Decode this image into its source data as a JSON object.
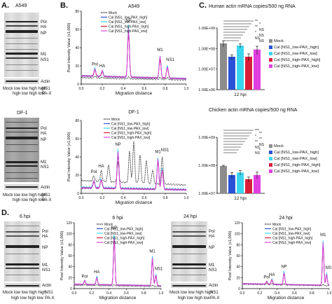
{
  "panels": {
    "A": {
      "letter": "A.",
      "title": "A549"
    },
    "B": {
      "letter": "B.",
      "title": "A549"
    },
    "C": {
      "letter": "C.",
      "title_top": "Human actin mRNA copies/500 ng RNA",
      "title_bottom": "Chicken actin mRNA copies/500 ng RNA",
      "xlabel": "12 hpi"
    },
    "D": {
      "letter": "D.",
      "left_title": "6 hpi",
      "right_title": "24 hpi"
    },
    "gel_df1_title": "DF-1",
    "trace_df1_title": "DF-1"
  },
  "gel_labels": {
    "pol": "Pol",
    "ha": "HA",
    "np": "NP",
    "m1": "M1",
    "ns1": "NS1",
    "actin": "Actin",
    "row1": "Mock  low  low  high high",
    "row2": "high  low  high  low",
    "ns1_row": "NS1",
    "pax_row": "PA-X",
    "df1_pol": "Pol",
    "df1_ha": "HA",
    "df1_np": "NP",
    "df1_m1": "M1",
    "df1_ns1": "NS1",
    "df1_actin": "Actin",
    "df1_row1": "Mock  low  low  high high",
    "df1_row2": "high  low  high  low",
    "d_pol": "Pol",
    "d_ha": "HA",
    "d_np": "NP",
    "d_m1": "M1",
    "d_ns1": "NS1",
    "d_actin": "Actin",
    "d_row1": "Mock low  low  high  high",
    "d_row2": "high  low  high  low",
    "d2_pol": "Pol",
    "d2_ha": "HA",
    "d2_np": "NP",
    "d2_m1": "M1",
    "d2_ns1": "NS1",
    "d2_actin": "Actin",
    "d2_row1": "Mock low  low  high  high",
    "d2_row2": "high  low  high  low"
  },
  "trace_labels": {
    "ylabel": "Pixel Intensity Value (x1,000)",
    "xlabel": "Migration distance",
    "pol": "Pol",
    "ha": "HA",
    "np": "NP",
    "m1": "M1",
    "ns1": "NS1"
  },
  "legend_trace": [
    "Mock",
    "Cal [NS1_low-PAX_high]",
    "Cal [NS1_low-PAX_low]",
    "Cal [NS1_high-PAX_high]",
    "Cal [NS1_high-PAX_low]"
  ],
  "legend_d": [
    "Mock",
    "Cal [NS1_low-PAX_high]",
    "Cal [NS1_low-PAX_low]",
    "Cal [NS1_high-PAX_high]",
    "Cal [NS1_high-PAX_low]"
  ],
  "legend_bar": [
    "Mock",
    "Cal [NS1_low-PAX_high]",
    "Cal [NS1_low-PAX_low]",
    "Cal [NS1_high-PAX_high]",
    "Cal [NS1_high-PAX_low]"
  ],
  "sig": {
    "ns": "NS",
    "one": "*",
    "two": "**"
  },
  "colors": {
    "mock": "#222222",
    "low_high": "#2a52d6",
    "low_low": "#3ad6ee",
    "high_high": "#d91e3a",
    "high_low": "#e040e0",
    "grey": "#8c8c8c"
  },
  "chart_data": [
    {
      "type": "line",
      "panel": "B-A549",
      "title": "A549",
      "xlabel": "Migration distance",
      "ylabel": "Pixel Intensity Value (x1,000)",
      "xlim": [
        0,
        1.0
      ],
      "ylim": [
        0,
        80
      ],
      "xticks": [
        0.0,
        0.2,
        0.4,
        0.6,
        0.8,
        1.0
      ],
      "yticks": [
        0,
        20,
        40,
        60,
        80
      ],
      "peaks": {
        "Pol": 0.13,
        "HA": 0.2,
        "NP": 0.45,
        "M1": 0.75,
        "NS1": 0.82
      },
      "series": [
        {
          "name": "Mock",
          "peaks": [
            [
              0.13,
              9
            ],
            [
              0.2,
              8
            ],
            [
              0.45,
              9
            ],
            [
              0.75,
              9
            ],
            [
              0.82,
              9
            ]
          ],
          "baseline": 7
        },
        {
          "name": "Cal [NS1_low-PAX_high]",
          "peaks": [
            [
              0.13,
              17
            ],
            [
              0.2,
              15
            ],
            [
              0.45,
              62
            ],
            [
              0.75,
              32
            ],
            [
              0.82,
              22
            ]
          ],
          "baseline": 9
        },
        {
          "name": "Cal [NS1_low-PAX_low]",
          "peaks": [
            [
              0.13,
              18
            ],
            [
              0.2,
              16
            ],
            [
              0.45,
              66
            ],
            [
              0.75,
              34
            ],
            [
              0.82,
              23
            ]
          ],
          "baseline": 9
        },
        {
          "name": "Cal [NS1_high-PAX_high]",
          "peaks": [
            [
              0.13,
              16
            ],
            [
              0.2,
              14
            ],
            [
              0.45,
              60
            ],
            [
              0.75,
              30
            ],
            [
              0.82,
              21
            ]
          ],
          "baseline": 9
        },
        {
          "name": "Cal [NS1_high-PAX_low]",
          "peaks": [
            [
              0.13,
              17
            ],
            [
              0.2,
              15
            ],
            [
              0.45,
              63
            ],
            [
              0.75,
              33
            ],
            [
              0.82,
              22
            ]
          ],
          "baseline": 9
        }
      ]
    },
    {
      "type": "line",
      "panel": "B-DF-1",
      "title": "DF-1",
      "xlabel": "Migration distance",
      "ylabel": "Pixel Intensity Value (x1,000)",
      "xlim": [
        0,
        1.0
      ],
      "ylim": [
        0,
        80
      ],
      "xticks": [
        0.0,
        0.2,
        0.4,
        0.6,
        0.8,
        1.0
      ],
      "yticks": [
        0,
        20,
        40,
        60,
        80
      ],
      "peaks": {
        "Pol": 0.12,
        "HA": 0.19,
        "NP": 0.35,
        "M1": 0.73,
        "NS1": 0.77
      },
      "series": [
        {
          "name": "Mock",
          "peaks": [
            [
              0.12,
              20
            ],
            [
              0.19,
              26
            ],
            [
              0.26,
              34
            ],
            [
              0.35,
              36
            ],
            [
              0.46,
              50
            ],
            [
              0.5,
              60
            ],
            [
              0.56,
              46
            ],
            [
              0.62,
              40
            ],
            [
              0.68,
              30
            ],
            [
              0.77,
              44
            ]
          ],
          "baseline": 14
        },
        {
          "name": "Cal [NS1_low-PAX_high]",
          "peaks": [
            [
              0.12,
              14
            ],
            [
              0.19,
              16
            ],
            [
              0.35,
              48
            ],
            [
              0.73,
              40
            ],
            [
              0.77,
              28
            ]
          ],
          "baseline": 6
        },
        {
          "name": "Cal [NS1_low-PAX_low]",
          "peaks": [
            [
              0.12,
              15
            ],
            [
              0.19,
              17
            ],
            [
              0.35,
              50
            ],
            [
              0.73,
              42
            ],
            [
              0.77,
              30
            ]
          ],
          "baseline": 7
        },
        {
          "name": "Cal [NS1_high-PAX_high]",
          "peaks": [
            [
              0.12,
              13
            ],
            [
              0.19,
              15
            ],
            [
              0.35,
              46
            ],
            [
              0.73,
              38
            ],
            [
              0.77,
              27
            ]
          ],
          "baseline": 6
        },
        {
          "name": "Cal [NS1_high-PAX_low]",
          "peaks": [
            [
              0.12,
              14
            ],
            [
              0.19,
              16
            ],
            [
              0.35,
              47
            ],
            [
              0.73,
              39
            ],
            [
              0.77,
              28
            ]
          ],
          "baseline": 6
        }
      ]
    },
    {
      "type": "bar",
      "panel": "C-human",
      "title": "Human actin mRNA copies/500 ng RNA",
      "xlabel": "12 hpi",
      "yscale": "log",
      "ylim": [
        1000000,
        1000000000
      ],
      "yticks": [
        "1.00E+06",
        "1.00E+07",
        "1.00E+08",
        "1.00E+09"
      ],
      "categories": [
        "Mock",
        "Cal [NS1_low-PAX_high]",
        "Cal [NS1_low-PAX_low]",
        "Cal [NS1_high-PAX_high]",
        "Cal [NS1_high-PAX_low]"
      ],
      "values": [
        180000000,
        40000000,
        140000000,
        40000000,
        90000000
      ],
      "errors": [
        60000000,
        10000000,
        30000000,
        15000000,
        40000000
      ],
      "significance": [
        "**",
        "*",
        "**",
        "NS",
        "*",
        "NS",
        "NS",
        "NS"
      ]
    },
    {
      "type": "bar",
      "panel": "C-chicken",
      "title": "Chicken actin mRNA copies/500 ng RNA",
      "xlabel": "12 hpi",
      "yscale": "log",
      "ylim": [
        10000000,
        1000000000
      ],
      "yticks": [
        "1.00E+07",
        "1.00E+08",
        "1.00E+09"
      ],
      "categories": [
        "Mock",
        "Cal [NS1_low-PAX_high]",
        "Cal [NS1_low-PAX_low]",
        "Cal [NS1_high-PAX_high]",
        "Cal [NS1_high-PAX_low]"
      ],
      "values": [
        95000000,
        45000000,
        55000000,
        32000000,
        45000000
      ],
      "errors": [
        5000000,
        10000000,
        10000000,
        6000000,
        12000000
      ],
      "significance": [
        "***",
        "**",
        "*",
        "**",
        "**",
        "NS",
        "NS",
        "*",
        "NS"
      ]
    },
    {
      "type": "line",
      "panel": "D-6hpi",
      "title": "6 hpi",
      "xlabel": "Migration distance",
      "ylabel": "Pixel Intensity Value (x1,000)",
      "xlim": [
        0,
        1.0
      ],
      "ylim": [
        0,
        120
      ],
      "xticks": [
        0.0,
        0.2,
        0.4,
        0.6,
        0.8,
        1.0
      ],
      "yticks": [
        0,
        20,
        40,
        60,
        80,
        100,
        120
      ],
      "peaks": {
        "Pol": 0.12,
        "HA": 0.26,
        "NP": 0.46,
        "M1": 0.9,
        "NS1": 0.94
      },
      "series": [
        {
          "name": "Mock",
          "peaks": [
            [
              0.12,
              8
            ],
            [
              0.26,
              8
            ],
            [
              0.46,
              8
            ],
            [
              0.9,
              8
            ]
          ],
          "baseline": 6
        },
        {
          "name": "Cal [NS1_low-PAX_high]",
          "peaks": [
            [
              0.12,
              15
            ],
            [
              0.26,
              22
            ],
            [
              0.46,
              100
            ],
            [
              0.9,
              60
            ],
            [
              0.94,
              28
            ]
          ],
          "baseline": 8
        },
        {
          "name": "Cal [NS1_low-PAX_low]",
          "peaks": [
            [
              0.12,
              16
            ],
            [
              0.26,
              24
            ],
            [
              0.46,
              105
            ],
            [
              0.9,
              62
            ],
            [
              0.94,
              30
            ]
          ],
          "baseline": 8
        },
        {
          "name": "Cal [NS1_high-PAX_high]",
          "peaks": [
            [
              0.12,
              14
            ],
            [
              0.26,
              20
            ],
            [
              0.46,
              95
            ],
            [
              0.9,
              58
            ],
            [
              0.94,
              26
            ]
          ],
          "baseline": 8
        },
        {
          "name": "Cal [NS1_high-PAX_low]",
          "peaks": [
            [
              0.12,
              15
            ],
            [
              0.26,
              21
            ],
            [
              0.46,
              98
            ],
            [
              0.9,
              59
            ],
            [
              0.94,
              27
            ]
          ],
          "baseline": 8
        }
      ]
    },
    {
      "type": "line",
      "panel": "D-24hpi",
      "title": "24 hpi",
      "xlabel": "Migration distance",
      "ylabel": "Pixel Intensity Value (x1,000)",
      "xlim": [
        0,
        1.0
      ],
      "ylim": [
        0,
        120
      ],
      "xticks": [
        0.0,
        0.2,
        0.4,
        0.6,
        0.8,
        1.0
      ],
      "yticks": [
        0,
        20,
        40,
        60,
        80,
        100,
        120
      ],
      "peaks": {
        "Pol": 0.28,
        "HA": 0.34,
        "NP": 0.48,
        "M1": 0.93,
        "NS1": 0.97
      },
      "series": [
        {
          "name": "Mock",
          "peaks": [
            [
              0.28,
              10
            ],
            [
              0.34,
              10
            ],
            [
              0.48,
              10
            ],
            [
              0.93,
              10
            ]
          ],
          "baseline": 8
        },
        {
          "name": "Cal [NS1_low-PAX_high]",
          "peaks": [
            [
              0.28,
              14
            ],
            [
              0.34,
              18
            ],
            [
              0.48,
              32
            ],
            [
              0.93,
              90
            ],
            [
              0.97,
              30
            ]
          ],
          "baseline": 9
        },
        {
          "name": "Cal [NS1_low-PAX_low]",
          "peaks": [
            [
              0.28,
              15
            ],
            [
              0.34,
              19
            ],
            [
              0.48,
              34
            ],
            [
              0.93,
              92
            ],
            [
              0.97,
              32
            ]
          ],
          "baseline": 9
        },
        {
          "name": "Cal [NS1_high-PAX_high]",
          "peaks": [
            [
              0.28,
              13
            ],
            [
              0.34,
              17
            ],
            [
              0.48,
              30
            ],
            [
              0.93,
              86
            ],
            [
              0.97,
              28
            ]
          ],
          "baseline": 9
        },
        {
          "name": "Cal [NS1_high-PAX_low]",
          "peaks": [
            [
              0.28,
              14
            ],
            [
              0.34,
              18
            ],
            [
              0.48,
              31
            ],
            [
              0.93,
              88
            ],
            [
              0.97,
              29
            ]
          ],
          "baseline": 9
        }
      ]
    }
  ]
}
